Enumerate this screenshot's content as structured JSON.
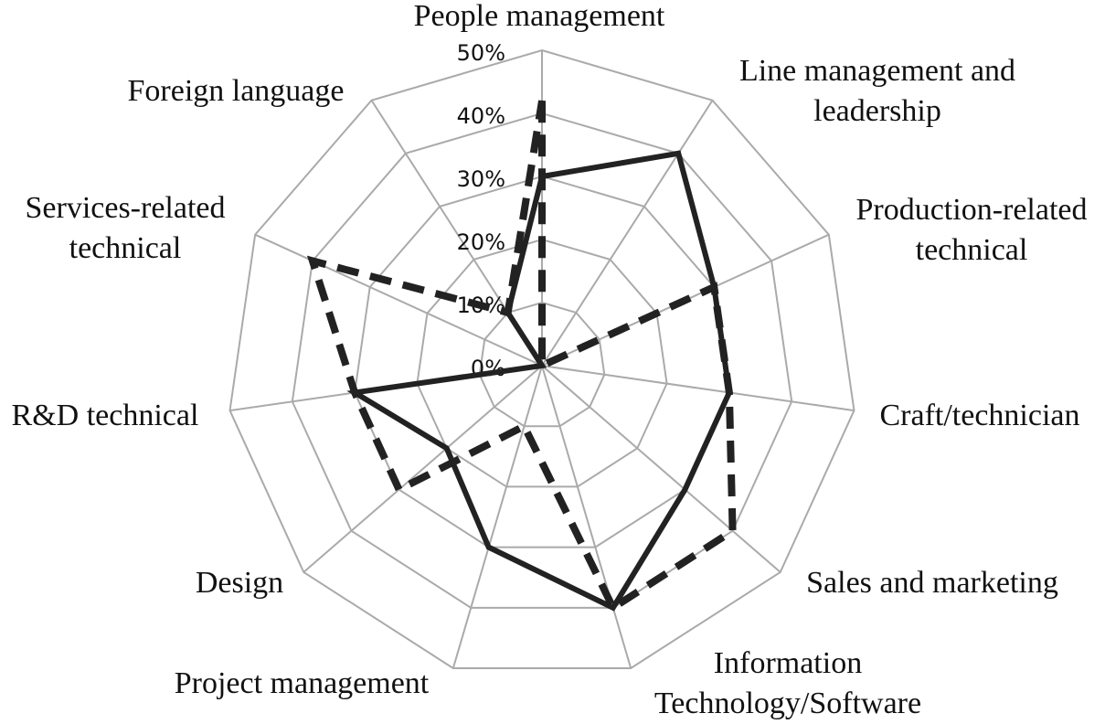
{
  "chart_data": {
    "type": "radar",
    "categories": [
      "People management",
      "Line management and leadership",
      "Production-related technical",
      "Craft/technician",
      "Sales and marketing",
      "Information Technology/Software",
      "Project management",
      "Design",
      "R&D technical",
      "Services-related technical",
      "Foreign language"
    ],
    "series": [
      {
        "color": "#222222",
        "line_style": "solid",
        "values": [
          30,
          40,
          30,
          30,
          30,
          40,
          30,
          20,
          30,
          0,
          10
        ]
      },
      {
        "color": "#222222",
        "line_style": "dashed",
        "values": [
          42,
          0,
          30,
          30,
          40,
          40,
          10,
          30,
          30,
          40,
          10
        ]
      }
    ],
    "ylim": [
      0,
      50
    ],
    "yticks": [
      {
        "value": 0,
        "label": "0%"
      },
      {
        "value": 10,
        "label": "10%"
      },
      {
        "value": 20,
        "label": "20%"
      },
      {
        "value": 30,
        "label": "30%"
      },
      {
        "value": 40,
        "label": "40%"
      },
      {
        "value": 50,
        "label": "50%"
      }
    ],
    "grid": true,
    "grid_color": "#aaaaaa"
  }
}
